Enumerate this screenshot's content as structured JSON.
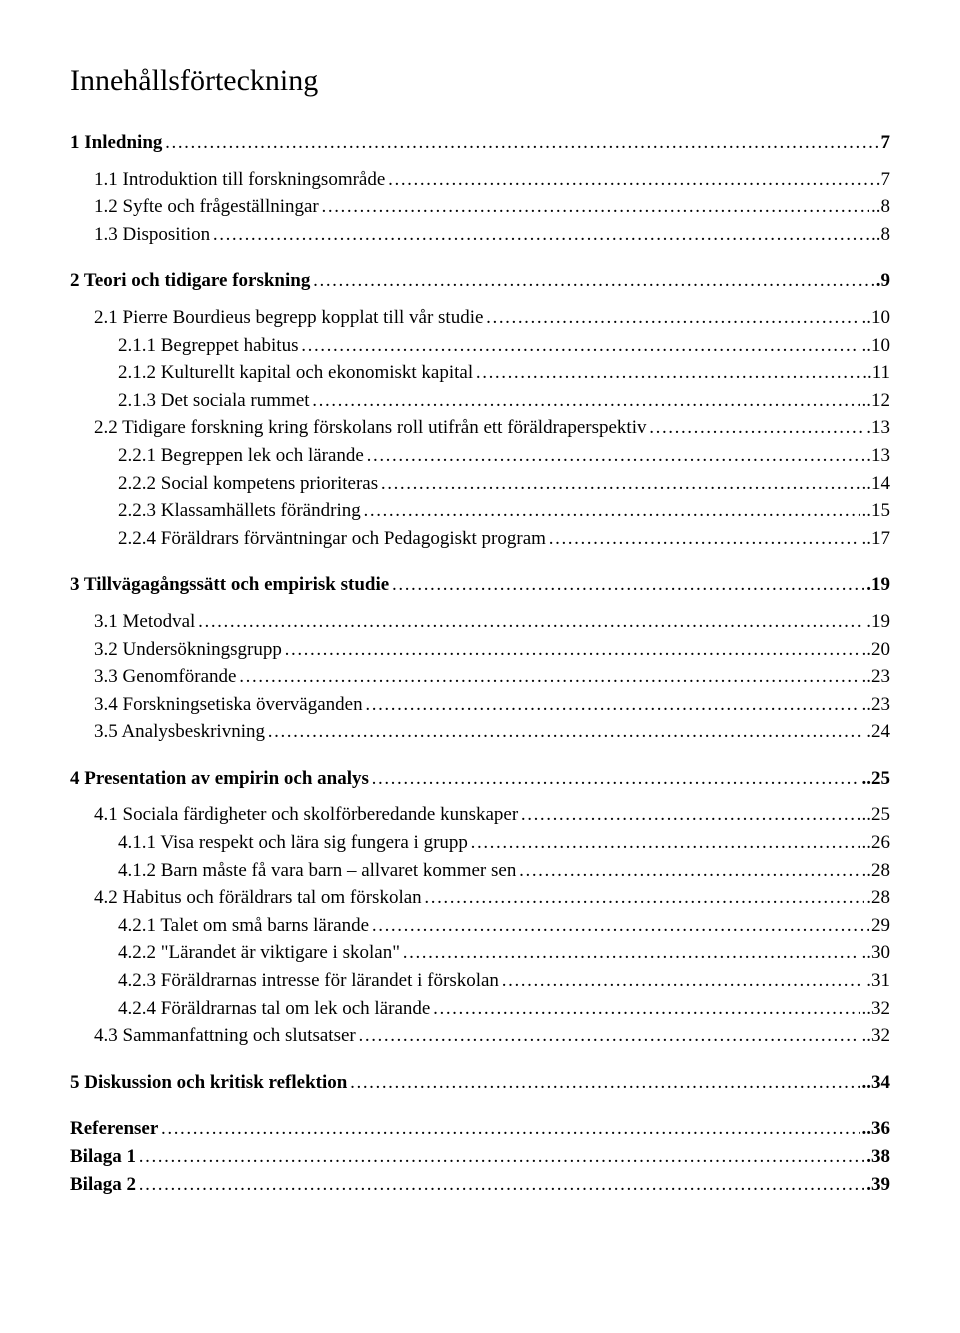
{
  "title": "Innehållsförteckning",
  "entries": [
    {
      "label": "1 Inledning",
      "page": "7",
      "bold": true,
      "indent": 0,
      "gapAfter": "sm"
    },
    {
      "label": "1.1 Introduktion till forskningsområde",
      "page": ".7",
      "bold": false,
      "indent": 1
    },
    {
      "label": "1.2 Syfte och frågeställningar",
      "page": "..8",
      "bold": false,
      "indent": 1
    },
    {
      "label": "1.3 Disposition",
      "page": "..8",
      "bold": false,
      "indent": 1,
      "gapAfter": "lg"
    },
    {
      "label": "2 Teori och tidigare forskning",
      "page": ".9",
      "bold": true,
      "indent": 0,
      "gapAfter": "sm"
    },
    {
      "label": "2.1 Pierre Bourdieus begrepp kopplat till vår studie",
      "page": "..10",
      "bold": false,
      "indent": 1
    },
    {
      "label": "2.1.1 Begreppet habitus",
      "page": "..10",
      "bold": false,
      "indent": 2
    },
    {
      "label": "2.1.2 Kulturellt kapital och ekonomiskt kapital",
      "page": "..11",
      "bold": false,
      "indent": 2
    },
    {
      "label": "2.1.3 Det sociala rummet",
      "page": "..12",
      "bold": false,
      "indent": 2
    },
    {
      "label": "2.2 Tidigare forskning kring förskolans roll utifrån ett föräldraperspektiv",
      "page": ".13",
      "bold": false,
      "indent": 1
    },
    {
      "label": "2.2.1 Begreppen lek och lärande",
      "page": ".13",
      "bold": false,
      "indent": 2
    },
    {
      "label": "2.2.2 Social kompetens prioriteras",
      "page": "..14",
      "bold": false,
      "indent": 2
    },
    {
      "label": "2.2.3 Klassamhällets förändring",
      "page": "..15",
      "bold": false,
      "indent": 2
    },
    {
      "label": "2.2.4 Föräldrars förväntningar och Pedagogiskt program",
      "page": "..17",
      "bold": false,
      "indent": 2,
      "gapAfter": "lg"
    },
    {
      "label": "3 Tillvägagångssätt och empirisk studie",
      "page": ".19",
      "bold": true,
      "indent": 0,
      "gapAfter": "sm"
    },
    {
      "label": "3.1 Metodval",
      "page": ".19",
      "bold": false,
      "indent": 1
    },
    {
      "label": "3.2 Undersökningsgrupp",
      "page": "..20",
      "bold": false,
      "indent": 1
    },
    {
      "label": "3.3 Genomförande",
      "page": "..23",
      "bold": false,
      "indent": 1
    },
    {
      "label": "3.4 Forskningsetiska överväganden",
      "page": "..23",
      "bold": false,
      "indent": 1
    },
    {
      "label": "3.5 Analysbeskrivning",
      "page": ".24",
      "bold": false,
      "indent": 1,
      "gapAfter": "lg"
    },
    {
      "label": "4 Presentation av empirin och analys",
      "page": "..25",
      "bold": true,
      "indent": 0,
      "gapAfter": "sm"
    },
    {
      "label": "4.1 Sociala färdigheter och skolförberedande kunskaper",
      "page": "..25",
      "bold": false,
      "indent": 1
    },
    {
      "label": "4.1.1 Visa respekt och lära sig fungera i grupp",
      "page": "..26",
      "bold": false,
      "indent": 2
    },
    {
      "label": "4.1.2 Barn måste få vara barn – allvaret kommer sen",
      "page": "..28",
      "bold": false,
      "indent": 2
    },
    {
      "label": "4.2 Habitus och föräldrars tal om förskolan",
      "page": ".28",
      "bold": false,
      "indent": 1
    },
    {
      "label": "4.2.1 Talet om små barns lärande",
      "page": "29",
      "bold": false,
      "indent": 2
    },
    {
      "label": "4.2.2 \"Lärandet är viktigare i skolan\"",
      "page": "..30",
      "bold": false,
      "indent": 2
    },
    {
      "label": "4.2.3 Föräldrarnas intresse för lärandet i förskolan",
      "page": ".31",
      "bold": false,
      "indent": 2
    },
    {
      "label": "4.2.4 Föräldrarnas tal om lek och lärande",
      "page": "..32",
      "bold": false,
      "indent": 2
    },
    {
      "label": "4.3 Sammanfattning och slutsatser",
      "page": "..32",
      "bold": false,
      "indent": 1,
      "gapAfter": "lg"
    },
    {
      "label": "5 Diskussion och kritisk reflektion",
      "page": "..34",
      "bold": true,
      "indent": 0,
      "gapAfter": "lg"
    },
    {
      "label": "Referenser",
      "page": "..36",
      "bold": true,
      "indent": 0
    },
    {
      "label": "Bilaga 1",
      "page": ".38",
      "bold": true,
      "indent": 0
    },
    {
      "label": "Bilaga 2",
      "page": ".39",
      "bold": true,
      "indent": 0
    }
  ]
}
